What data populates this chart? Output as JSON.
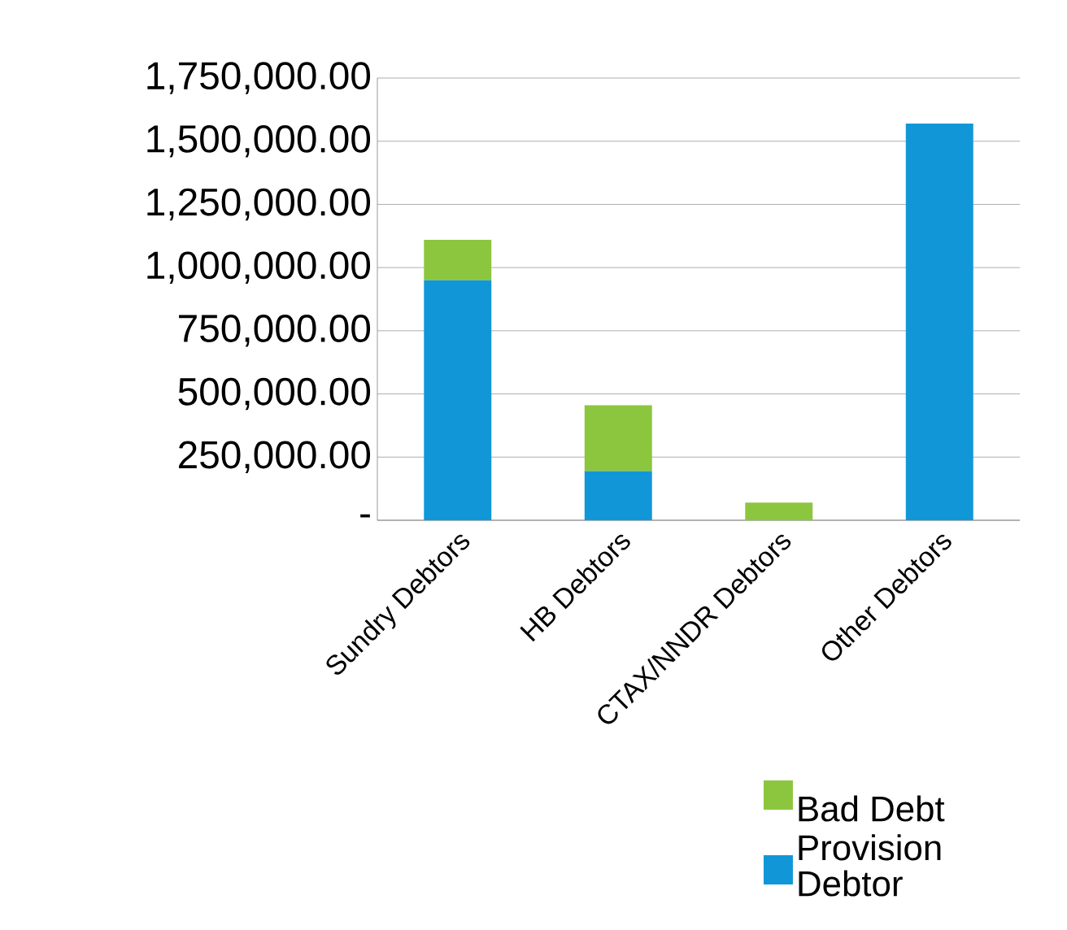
{
  "chart_data": {
    "type": "bar",
    "stacked": true,
    "categories": [
      "Sundry Debtors",
      "HB Debtors",
      "CTAX/NNDR Debtors",
      "Other Debtors"
    ],
    "series": [
      {
        "name": "Debtor",
        "color": "#1197d8",
        "values": [
          950000,
          195000,
          0,
          1570000
        ]
      },
      {
        "name": "Bad Debt Provision",
        "color": "#8cc63f",
        "values": [
          160000,
          260000,
          70000,
          0
        ]
      }
    ],
    "ylim": [
      0,
      1750000
    ],
    "yticks": [
      {
        "value": 0,
        "label": "-"
      },
      {
        "value": 250000,
        "label": "250,000.00"
      },
      {
        "value": 500000,
        "label": "500,000.00"
      },
      {
        "value": 750000,
        "label": "750,000.00"
      },
      {
        "value": 1000000,
        "label": "1,000,000.00"
      },
      {
        "value": 1250000,
        "label": "1,250,000.00"
      },
      {
        "value": 1500000,
        "label": "1,500,000.00"
      },
      {
        "value": 1750000,
        "label": "1,750,000.00"
      }
    ],
    "grid": "y",
    "legend": "bottom right"
  }
}
